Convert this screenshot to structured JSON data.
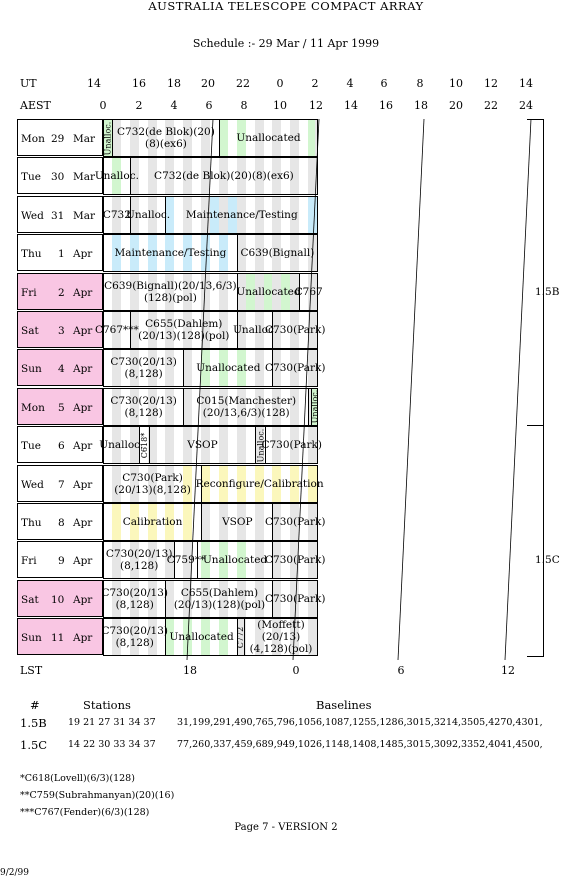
{
  "title": "AUSTRALIA TELESCOPE COMPACT ARRAY",
  "subtitle": "Schedule :- 29 Mar / 11 Apr 1999",
  "axes": {
    "ut_label": "UT",
    "aest_label": "AEST",
    "lst_label": "LST",
    "ut_ticks": [
      "14",
      "16",
      "18",
      "20",
      "22",
      "0",
      "2",
      "4",
      "6",
      "8",
      "10",
      "12",
      "14"
    ],
    "aest_ticks": [
      "0",
      "2",
      "4",
      "6",
      "8",
      "10",
      "12",
      "14",
      "16",
      "18",
      "20",
      "22",
      "24"
    ],
    "lst_ticks": [
      "18",
      "0",
      "6",
      "12"
    ]
  },
  "rows": [
    {
      "day": "Mon",
      "date": "29",
      "month": "Mar",
      "weekend": false,
      "blocks": [
        {
          "label": "Unalloc.",
          "vertical": true
        },
        {
          "label": "C732(de Blok)(20)(8)(ex6)"
        },
        {
          "label": "Unallocated"
        }
      ]
    },
    {
      "day": "Tue",
      "date": "30",
      "month": "Mar",
      "weekend": false,
      "blocks": [
        {
          "label": "Unalloc."
        },
        {
          "label": "C732(de Blok)(20)(8)(ex6)"
        }
      ]
    },
    {
      "day": "Wed",
      "date": "31",
      "month": "Mar",
      "weekend": false,
      "blocks": [
        {
          "label": "C732"
        },
        {
          "label": "Unalloc."
        },
        {
          "label": "Maintenance/Testing"
        }
      ]
    },
    {
      "day": "Thu",
      "date": "1",
      "month": "Apr",
      "weekend": false,
      "blocks": [
        {
          "label": "Maintenance/Testing"
        },
        {
          "label": "C639(Bignall)"
        }
      ]
    },
    {
      "day": "Fri",
      "date": "2",
      "month": "Apr",
      "weekend": true,
      "blocks": [
        {
          "label": "C639(Bignall)(20/13,6/3)(128)(pol)"
        },
        {
          "label": "Unallocated"
        },
        {
          "label": "C767"
        }
      ]
    },
    {
      "day": "Sat",
      "date": "3",
      "month": "Apr",
      "weekend": true,
      "blocks": [
        {
          "label": "C767***"
        },
        {
          "label": "C655(Dahlem)(20/13)(128)(pol)"
        },
        {
          "label": "Unalloc."
        },
        {
          "label": "C730(Park)"
        }
      ]
    },
    {
      "day": "Sun",
      "date": "4",
      "month": "Apr",
      "weekend": true,
      "blocks": [
        {
          "label": "C730(20/13)(8,128)"
        },
        {
          "label": "Unallocated"
        },
        {
          "label": "C730(Park)"
        }
      ]
    },
    {
      "day": "Mon",
      "date": "5",
      "month": "Apr",
      "weekend": true,
      "blocks": [
        {
          "label": "C730(20/13)(8,128)"
        },
        {
          "label": "C015(Manchester)(20/13,6/3)(128)"
        },
        {
          "label": ""
        },
        {
          "label": "Unalloc.",
          "vertical": true
        }
      ]
    },
    {
      "day": "Tue",
      "date": "6",
      "month": "Apr",
      "weekend": false,
      "blocks": [
        {
          "label": "Unalloc."
        },
        {
          "label": "C618*",
          "vertical": true
        },
        {
          "label": "VSOP"
        },
        {
          "label": "Unalloc.",
          "vertical": true
        },
        {
          "label": "C730(Park)"
        }
      ]
    },
    {
      "day": "Wed",
      "date": "7",
      "month": "Apr",
      "weekend": false,
      "blocks": [
        {
          "label": "C730(Park)(20/13)(8,128)"
        },
        {
          "label": "Reconfigure/Calibration"
        }
      ]
    },
    {
      "day": "Thu",
      "date": "8",
      "month": "Apr",
      "weekend": false,
      "blocks": [
        {
          "label": "Calibration"
        },
        {
          "label": "VSOP"
        },
        {
          "label": "C730(Park)"
        }
      ]
    },
    {
      "day": "Fri",
      "date": "9",
      "month": "Apr",
      "weekend": false,
      "blocks": [
        {
          "label": "C730(20/13)(8,128)"
        },
        {
          "label": "C759**"
        },
        {
          "label": "Unallocated"
        },
        {
          "label": "C730(Park)"
        }
      ]
    },
    {
      "day": "Sat",
      "date": "10",
      "month": "Apr",
      "weekend": true,
      "blocks": [
        {
          "label": "C730(20/13)(8,128)"
        },
        {
          "label": "C655(Dahlem)(20/13)(128)(pol)"
        },
        {
          "label": "C730(Park)"
        }
      ]
    },
    {
      "day": "Sun",
      "date": "11",
      "month": "Apr",
      "weekend": true,
      "blocks": [
        {
          "label": "C730(20/13)(8,128)"
        },
        {
          "label": "Unallocated"
        },
        {
          "label": "C772",
          "vertical": true
        },
        {
          "label": "(Moffett)(20/13)(4,128)(pol)"
        }
      ]
    }
  ],
  "configs": [
    "1.5B",
    "1.5C"
  ],
  "stations_table": {
    "col_hash": "#",
    "col_stations": "Stations",
    "col_baselines": "Baselines",
    "rows": [
      {
        "config": "1.5B",
        "stations": "19 21 27 31 34 37",
        "baselines": "31,199,291,490,765,796,1056,1087,1255,1286,3015,3214,3505,4270,4301,"
      },
      {
        "config": "1.5C",
        "stations": "14 22 30 33 34 37",
        "baselines": "77,260,337,459,689,949,1026,1148,1408,1485,3015,3092,3352,4041,4500,"
      }
    ]
  },
  "notes": [
    "*C618(Lovell)(6/3)(128)",
    "**C759(Subrahmanyan)(20)(16)",
    "***C767(Fender)(6/3)(128)"
  ],
  "page_label": "Page 7 - VERSION 2",
  "date_stamp": "9/2/99"
}
